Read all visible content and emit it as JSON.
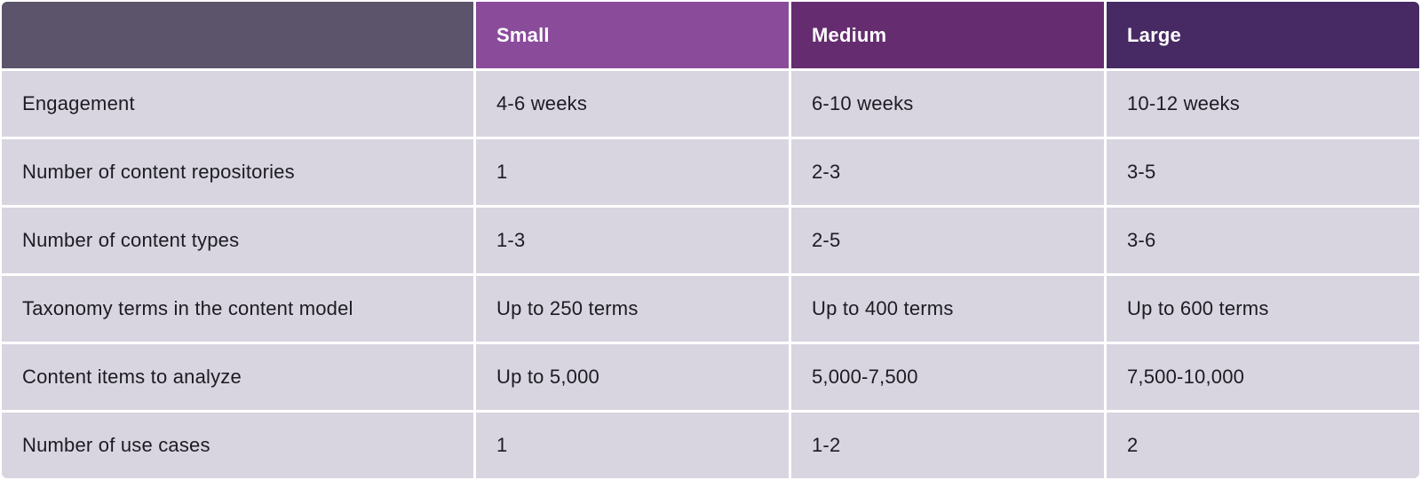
{
  "table": {
    "header": {
      "corner_label": "",
      "columns": [
        "Small",
        "Medium",
        "Large"
      ]
    },
    "rows": [
      {
        "label": "Engagement",
        "values": [
          "4-6 weeks",
          "6-10 weeks",
          "10-12 weeks"
        ]
      },
      {
        "label": "Number of content repositories",
        "values": [
          "1",
          "2-3",
          "3-5"
        ]
      },
      {
        "label": "Number of content types",
        "values": [
          "1-3",
          "2-5",
          "3-6"
        ]
      },
      {
        "label": "Taxonomy terms in the content model",
        "values": [
          "Up to 250 terms",
          "Up to 400 terms",
          "Up to 600 terms"
        ]
      },
      {
        "label": "Content items to analyze",
        "values": [
          "Up to 5,000",
          "5,000-7,500",
          "7,500-10,000"
        ]
      },
      {
        "label": "Number of use cases",
        "values": [
          "1",
          "1-2",
          "2"
        ]
      }
    ],
    "colors": {
      "corner_header_bg": "#5c546b",
      "small_header_bg": "#8a4b9b",
      "medium_header_bg": "#652d6f",
      "large_header_bg": "#472a63",
      "row_bg": "#d8d5e0",
      "gutter": "#ffffff",
      "header_text": "#ffffff",
      "body_text": "#1c1b22"
    }
  }
}
